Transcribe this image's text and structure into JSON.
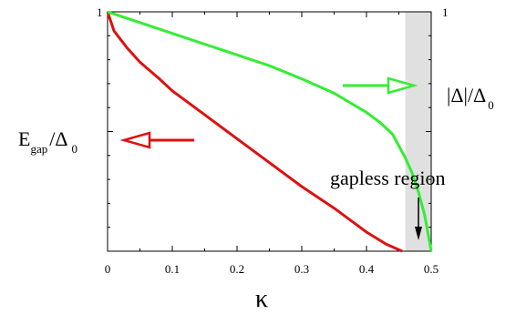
{
  "chart_data": {
    "type": "line",
    "xlabel": "κ",
    "xlim": [
      0,
      0.5
    ],
    "ylim": [
      0,
      1
    ],
    "x_ticks": [
      "0",
      "0.1",
      "0.2",
      "0.3",
      "0.4",
      "0.5"
    ],
    "y_tick_left": "1",
    "y_tick_right": "1",
    "ylabel_left": {
      "main": "E",
      "sub": "gap",
      "mid": "/Δ",
      "sub2": "0"
    },
    "ylabel_right": "|Δ|/Δ₀",
    "ylabel_right_parts": {
      "main": "|Δ|/Δ",
      "sub": "0"
    },
    "gapless_region": {
      "x_start": 0.46,
      "x_end": 0.5,
      "label": "gapless region",
      "color": "#e0e0e0"
    },
    "series": [
      {
        "color": "#dd1111",
        "x": [
          0,
          0.01,
          0.03,
          0.05,
          0.08,
          0.1,
          0.15,
          0.2,
          0.25,
          0.3,
          0.35,
          0.4,
          0.43,
          0.455
        ],
        "y": [
          1.0,
          0.92,
          0.85,
          0.79,
          0.72,
          0.67,
          0.57,
          0.47,
          0.37,
          0.27,
          0.18,
          0.08,
          0.03,
          0.0
        ]
      },
      {
        "color": "#33ee33",
        "x": [
          0,
          0.05,
          0.1,
          0.15,
          0.2,
          0.25,
          0.3,
          0.35,
          0.4,
          0.42,
          0.44,
          0.46,
          0.47,
          0.48,
          0.49,
          0.5
        ],
        "y": [
          1.0,
          0.955,
          0.91,
          0.865,
          0.82,
          0.775,
          0.72,
          0.66,
          0.58,
          0.54,
          0.49,
          0.39,
          0.33,
          0.25,
          0.15,
          0.0
        ]
      }
    ],
    "arrow_left": {
      "color": "#dd1111"
    },
    "arrow_right": {
      "color": "#33ee33"
    }
  }
}
